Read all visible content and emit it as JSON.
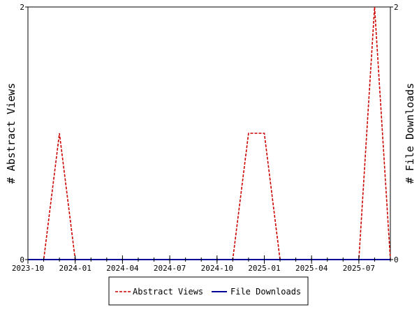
{
  "chart_data": {
    "type": "line",
    "ylabel_left": "# Abstract Views",
    "ylabel_right": "# File Downloads",
    "xlim": [
      "2023-10",
      "2025-09"
    ],
    "ylim_left": [
      0,
      2
    ],
    "ylim_right": [
      0,
      2
    ],
    "x_ticks": [
      "2023-10",
      "2024-01",
      "2024-04",
      "2024-07",
      "2024-10",
      "2025-01",
      "2025-04",
      "2025-07"
    ],
    "y_ticks_left": [
      "0",
      "2"
    ],
    "y_ticks_right": [
      "0",
      "2"
    ],
    "grid": false,
    "legend_position": "bottom",
    "series": [
      {
        "name": "Abstract Views",
        "color": "#cc0000",
        "style": "dashed",
        "axis": "left",
        "x": [
          "2023-10",
          "2023-11",
          "2023-12",
          "2024-01",
          "2024-02",
          "2024-03",
          "2024-04",
          "2024-05",
          "2024-06",
          "2024-07",
          "2024-08",
          "2024-09",
          "2024-10",
          "2024-11",
          "2024-12",
          "2025-01",
          "2025-02",
          "2025-03",
          "2025-04",
          "2025-05",
          "2025-06",
          "2025-07",
          "2025-08",
          "2025-09"
        ],
        "values": [
          0,
          0,
          1,
          0,
          0,
          0,
          0,
          0,
          0,
          0,
          0,
          0,
          0,
          0,
          1,
          1,
          0,
          0,
          0,
          0,
          0,
          0,
          2,
          0
        ]
      },
      {
        "name": "File Downloads",
        "color": "#000099",
        "style": "solid",
        "axis": "right",
        "x": [
          "2023-10",
          "2023-11",
          "2023-12",
          "2024-01",
          "2024-02",
          "2024-03",
          "2024-04",
          "2024-05",
          "2024-06",
          "2024-07",
          "2024-08",
          "2024-09",
          "2024-10",
          "2024-11",
          "2024-12",
          "2025-01",
          "2025-02",
          "2025-03",
          "2025-04",
          "2025-05",
          "2025-06",
          "2025-07",
          "2025-08",
          "2025-09"
        ],
        "values": [
          0,
          0,
          0,
          0,
          0,
          0,
          0,
          0,
          0,
          0,
          0,
          0,
          0,
          0,
          0,
          0,
          0,
          0,
          0,
          0,
          0,
          0,
          0,
          0
        ]
      }
    ]
  }
}
